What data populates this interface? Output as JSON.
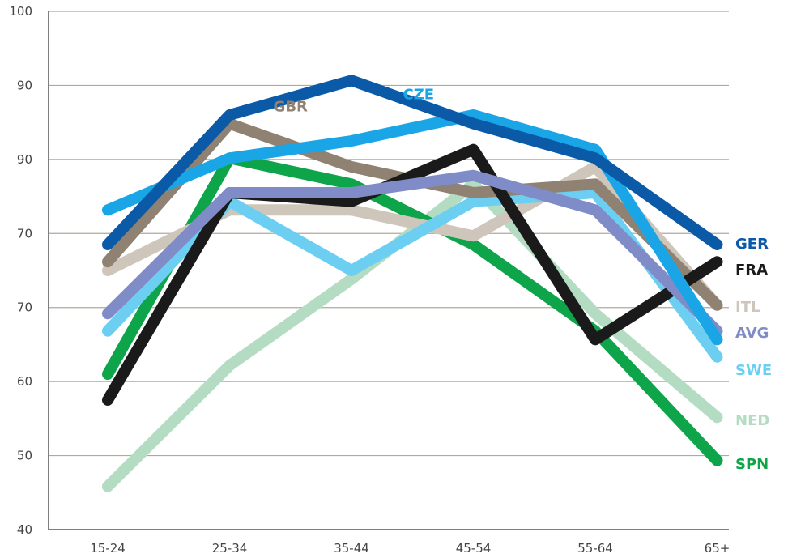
{
  "chart_data": {
    "type": "line",
    "title": "",
    "xlabel": "",
    "ylabel": "",
    "categories": [
      "15-24",
      "25-34",
      "35-44",
      "45-54",
      "55-64",
      "65+"
    ],
    "y_tick_labels": [
      "100",
      "90",
      "90",
      "70",
      "70",
      "60",
      "50",
      "40"
    ],
    "ylim": [
      40,
      100
    ],
    "grid": true,
    "series": [
      {
        "name": "NED",
        "color": "#b3dcc3",
        "values": [
          45,
          59,
          69,
          80,
          65,
          53
        ]
      },
      {
        "name": "SPN",
        "color": "#0ea44a",
        "values": [
          58,
          83,
          80,
          73,
          63,
          48
        ]
      },
      {
        "name": "ITL",
        "color": "#cfc6bb",
        "values": [
          70,
          77,
          77,
          74,
          82,
          66
        ]
      },
      {
        "name": "SWE",
        "color": "#6ccff2",
        "values": [
          63,
          78,
          70,
          78,
          79,
          60
        ]
      },
      {
        "name": "GBR",
        "color": "#8f8272",
        "values": [
          71,
          87,
          82,
          79,
          80,
          66
        ]
      },
      {
        "name": "FRA",
        "color": "#1a1a1a",
        "values": [
          55,
          79,
          78,
          84,
          62,
          71
        ]
      },
      {
        "name": "AVG",
        "color": "#7f8cc7",
        "values": [
          65,
          79,
          79,
          81,
          77,
          63
        ]
      },
      {
        "name": "CZE",
        "color": "#1aa6e6",
        "values": [
          77,
          83,
          85,
          88,
          84,
          62
        ]
      },
      {
        "name": "GER",
        "color": "#0b5aa8",
        "values": [
          73,
          88,
          92,
          87,
          83,
          73
        ]
      }
    ],
    "inline_labels": [
      "GBR",
      "CZE"
    ],
    "end_labels": [
      {
        "name": "GER",
        "color": "#0b5aa8"
      },
      {
        "name": "FRA",
        "color": "#1a1a1a"
      },
      {
        "name": "ITL",
        "color": "#cfc6bb"
      },
      {
        "name": "AVG",
        "color": "#7f8cc7"
      },
      {
        "name": "SWE",
        "color": "#6ccff2"
      },
      {
        "name": "NED",
        "color": "#b3dcc3"
      },
      {
        "name": "SPN",
        "color": "#0ea44a"
      }
    ]
  }
}
